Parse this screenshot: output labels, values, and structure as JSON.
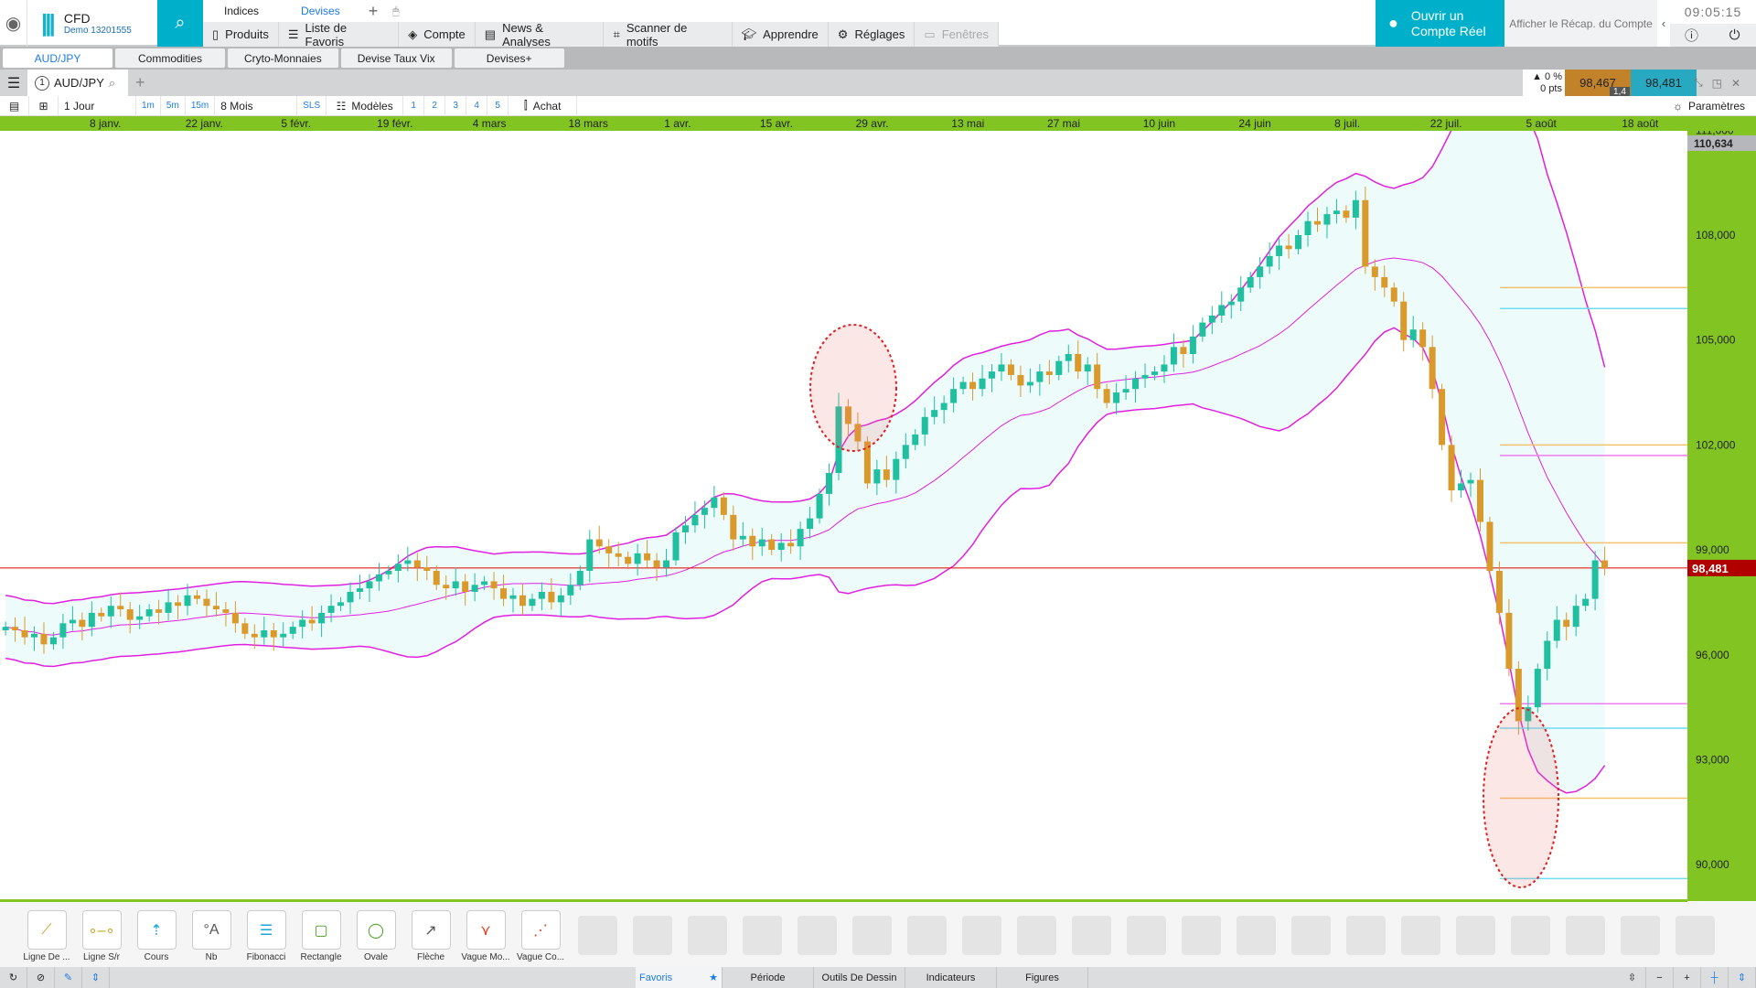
{
  "header": {
    "brand": "CFD",
    "account": "Demo 13201555",
    "tabs": [
      "Indices",
      "Devises"
    ],
    "nav": [
      "Produits",
      "Liste de Favoris",
      "Compte",
      "News & Analyses",
      "Scanner de motifs",
      "Apprendre",
      "Réglages",
      "Fenêtres"
    ],
    "open_account": [
      "Ouvrir un",
      "Compte Réel"
    ],
    "recap": "Afficher le Récap. du Compte",
    "clock": "09:05:15"
  },
  "workspaces": [
    "AUD/JPY",
    "Commodities",
    "Cryto-Monnaies",
    "Devise Taux Vix",
    "Devises+"
  ],
  "chart_header": {
    "symbol": "AUD/JPY",
    "tab_number": "1",
    "change_pct": "▲ 0 %",
    "change_pts": "0 pts",
    "bid": "98,467",
    "ask": "98,481",
    "spread": "1,4"
  },
  "toolbar": {
    "period": "1 Jour",
    "intervals": [
      "1m",
      "5m",
      "15m"
    ],
    "range": "8 Mois",
    "sls": "SLS",
    "models": "Modèles",
    "presets": [
      "1",
      "2",
      "3",
      "4",
      "5"
    ],
    "order": "Achat",
    "settings": "Paramètres"
  },
  "date_axis": [
    "8 janv.",
    "22 janv.",
    "5 févr.",
    "19 févr.",
    "4 mars",
    "18 mars",
    "1 avr.",
    "15 avr.",
    "29 avr.",
    "13 mai",
    "27 mai",
    "10 juin",
    "24 juin",
    "8 juil.",
    "22 juil.",
    "5 août",
    "18 août"
  ],
  "chart_data": {
    "type": "candlestick",
    "symbol": "AUD/JPY",
    "timeframe": "1 Jour",
    "y_ticks": [
      "111,000",
      "108,000",
      "105,000",
      "102,000",
      "99,000",
      "96,000",
      "93,000",
      "90,000"
    ],
    "y_tick_values": [
      111,
      108,
      105,
      102,
      99,
      96,
      93,
      90
    ],
    "ylim": [
      89.3,
      111.3
    ],
    "high_label": "110,634",
    "last_label": "98,481",
    "last": 98.481,
    "closes": [
      96.8,
      96.7,
      96.5,
      96.6,
      96.3,
      96.5,
      96.9,
      97.0,
      96.8,
      97.2,
      97.1,
      97.4,
      97.3,
      97.0,
      97.1,
      97.3,
      97.2,
      97.5,
      97.4,
      97.7,
      97.6,
      97.4,
      97.3,
      97.2,
      96.9,
      96.6,
      96.5,
      96.7,
      96.5,
      96.6,
      96.8,
      97.0,
      96.9,
      97.2,
      97.4,
      97.5,
      97.8,
      97.9,
      98.1,
      98.3,
      98.4,
      98.6,
      98.7,
      98.5,
      98.4,
      98.0,
      97.9,
      98.1,
      97.8,
      98.0,
      98.1,
      97.9,
      97.6,
      97.7,
      97.4,
      97.6,
      97.8,
      97.5,
      97.7,
      98.0,
      98.4,
      99.3,
      99.1,
      98.9,
      98.8,
      98.6,
      98.9,
      98.7,
      98.5,
      98.7,
      99.5,
      99.7,
      100.0,
      100.2,
      100.5,
      100.0,
      99.3,
      99.4,
      99.1,
      99.3,
      99.0,
      99.2,
      99.1,
      99.6,
      99.9,
      100.6,
      101.2,
      103.1,
      102.6,
      102.1,
      100.9,
      101.3,
      101.0,
      101.6,
      102.0,
      102.3,
      102.8,
      103.0,
      103.2,
      103.6,
      103.8,
      103.6,
      103.9,
      104.1,
      104.3,
      104.0,
      103.7,
      103.8,
      104.1,
      104.0,
      104.4,
      104.6,
      104.1,
      104.3,
      103.6,
      103.2,
      103.5,
      103.6,
      103.9,
      104.0,
      104.1,
      104.3,
      104.8,
      104.6,
      105.1,
      105.5,
      105.7,
      106.0,
      106.1,
      106.5,
      106.8,
      107.1,
      107.4,
      107.7,
      107.6,
      108.0,
      108.4,
      108.3,
      108.6,
      108.7,
      108.5,
      109.0,
      107.1,
      106.8,
      106.5,
      106.1,
      105.0,
      105.3,
      104.8,
      103.6,
      102.0,
      100.7,
      100.9,
      101.0,
      99.8,
      98.4,
      97.2,
      95.6,
      94.1,
      94.5,
      95.6,
      96.4,
      97.0,
      96.8,
      97.4,
      97.6,
      98.7,
      98.48
    ],
    "levels": [
      {
        "value": 106.5,
        "color": "#f5c16c"
      },
      {
        "value": 105.9,
        "color": "#6fdcf2"
      },
      {
        "value": 102.0,
        "color": "#f5c16c"
      },
      {
        "value": 101.7,
        "color": "#f07cf0"
      },
      {
        "value": 99.2,
        "color": "#f5c16c"
      },
      {
        "value": 94.6,
        "color": "#f07cf0"
      },
      {
        "value": 93.9,
        "color": "#6fdcf2"
      },
      {
        "value": 91.9,
        "color": "#f5c16c"
      },
      {
        "value": 89.6,
        "color": "#6fdcf2"
      }
    ],
    "colors": {
      "up": "#1fbfa0",
      "down": "#d99a2b",
      "bands": "#e020e0",
      "band_fill": "#eefbfb",
      "last_line": "#e00000",
      "axis_bg": "#82c421"
    }
  },
  "drawing_tools": [
    "Ligne De ...",
    "Ligne S/r",
    "Cours",
    "Nb",
    "Fibonacci",
    "Rectangle",
    "Ovale",
    "Flèche",
    "Vague Mo...",
    "Vague Co..."
  ],
  "bottom_tabs": [
    "Favoris",
    "Période",
    "Outils De Dessin",
    "Indicateurs",
    "Figures"
  ]
}
